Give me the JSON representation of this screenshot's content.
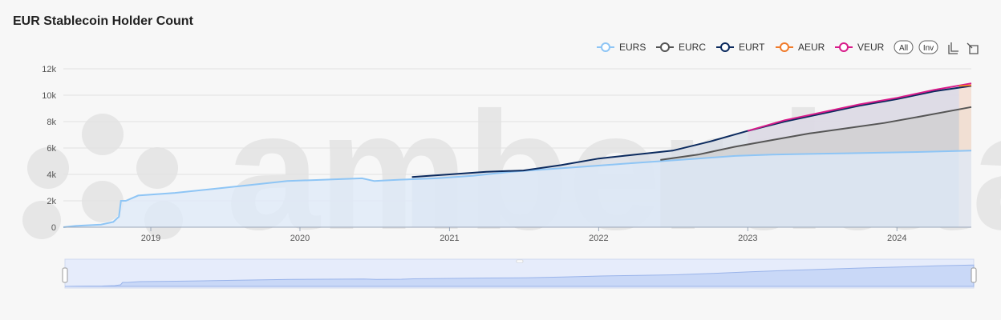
{
  "chart_data": {
    "title": "EUR Stablecoin Holder Count",
    "type": "area",
    "x_start": "2018-06",
    "x_end": "2024-07",
    "ylim": [
      0,
      12000
    ],
    "yticks": [
      0,
      2000,
      4000,
      6000,
      8000,
      10000,
      12000
    ],
    "ytick_labels": [
      "0",
      "2k",
      "4k",
      "6k",
      "8k",
      "10k",
      "12k"
    ],
    "xticks": [
      "2019-01",
      "2020-01",
      "2021-01",
      "2022-01",
      "2023-01",
      "2024-01"
    ],
    "xtick_labels": [
      "2019",
      "2020",
      "2021",
      "2022",
      "2023",
      "2024"
    ],
    "stacked": false,
    "grid": true,
    "legend_position": "top-right",
    "series": [
      {
        "name": "EURS",
        "color": "#8ec5f5",
        "fill": "#dde9f8",
        "points": [
          [
            "2018-06",
            0
          ],
          [
            "2018-07",
            100
          ],
          [
            "2018-09",
            200
          ],
          [
            "2018-10",
            400
          ],
          [
            "2018-10-15",
            800
          ],
          [
            "2018-10-20",
            2000
          ],
          [
            "2018-11",
            2000
          ],
          [
            "2018-12",
            2400
          ],
          [
            "2019-03",
            2600
          ],
          [
            "2019-06",
            2900
          ],
          [
            "2019-09",
            3200
          ],
          [
            "2019-12",
            3500
          ],
          [
            "2020-03",
            3600
          ],
          [
            "2020-06",
            3700
          ],
          [
            "2020-07",
            3500
          ],
          [
            "2020-09",
            3600
          ],
          [
            "2020-12",
            3700
          ],
          [
            "2021-03",
            3900
          ],
          [
            "2021-06",
            4200
          ],
          [
            "2021-09",
            4400
          ],
          [
            "2021-12",
            4600
          ],
          [
            "2022-03",
            4800
          ],
          [
            "2022-06",
            5000
          ],
          [
            "2022-09",
            5200
          ],
          [
            "2022-12",
            5400
          ],
          [
            "2023-03",
            5500
          ],
          [
            "2023-06",
            5550
          ],
          [
            "2023-09",
            5600
          ],
          [
            "2023-12",
            5650
          ],
          [
            "2024-03",
            5700
          ],
          [
            "2024-07",
            5800
          ]
        ]
      },
      {
        "name": "EURC",
        "color": "#555555",
        "fill": "#cfcfcf",
        "points": [
          [
            "2022-06",
            5100
          ],
          [
            "2022-09",
            5500
          ],
          [
            "2022-12",
            6100
          ],
          [
            "2023-03",
            6600
          ],
          [
            "2023-06",
            7100
          ],
          [
            "2023-09",
            7500
          ],
          [
            "2023-12",
            7900
          ],
          [
            "2024-03",
            8400
          ],
          [
            "2024-07",
            9100
          ]
        ]
      },
      {
        "name": "EURT",
        "color": "#0b2a5e",
        "fill": "#d7dce6",
        "points": [
          [
            "2020-10",
            3800
          ],
          [
            "2021-01",
            4000
          ],
          [
            "2021-04",
            4200
          ],
          [
            "2021-07",
            4300
          ],
          [
            "2021-10",
            4700
          ],
          [
            "2022-01",
            5200
          ],
          [
            "2022-04",
            5500
          ],
          [
            "2022-07",
            5800
          ],
          [
            "2022-10",
            6500
          ],
          [
            "2023-01",
            7300
          ],
          [
            "2023-04",
            8000
          ],
          [
            "2023-07",
            8600
          ],
          [
            "2023-10",
            9200
          ],
          [
            "2024-01",
            9700
          ],
          [
            "2024-04",
            10300
          ],
          [
            "2024-07",
            10700
          ]
        ]
      },
      {
        "name": "AEUR",
        "color": "#f07b2b",
        "fill": "#fbe3d2",
        "points": [
          [
            "2024-06",
            10700
          ],
          [
            "2024-07",
            10750
          ]
        ]
      },
      {
        "name": "VEUR",
        "color": "#d81b8a",
        "fill": "#f3cfe3",
        "points": [
          [
            "2023-01",
            7300
          ],
          [
            "2023-04",
            8100
          ],
          [
            "2023-07",
            8700
          ],
          [
            "2023-10",
            9300
          ],
          [
            "2024-01",
            9800
          ],
          [
            "2024-04",
            10400
          ],
          [
            "2024-07",
            10900
          ]
        ]
      }
    ],
    "controls": [
      "All",
      "Inv"
    ]
  },
  "watermark": "amberdata"
}
